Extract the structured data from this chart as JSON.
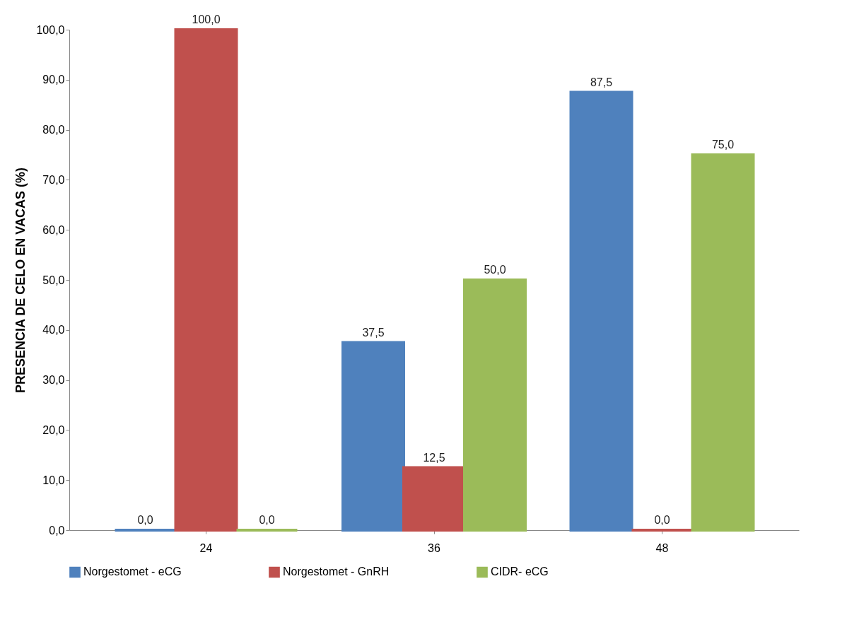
{
  "chart_data": {
    "type": "bar",
    "ylabel": "PRESENCIA  DE CELO EN VACAS (%)",
    "categories": [
      "24",
      "36",
      "48"
    ],
    "series": [
      {
        "name": "Norgestomet - eCG",
        "color": "#4f81bd",
        "values": [
          0,
          37.5,
          87.5
        ],
        "value_labels": [
          "0,0",
          "37,5",
          "87,5"
        ]
      },
      {
        "name": "Norgestomet - GnRH",
        "color": "#c0504d",
        "values": [
          100,
          12.5,
          0
        ],
        "value_labels": [
          "100,0",
          "12,5",
          "0,0"
        ]
      },
      {
        "name": "CIDR- eCG",
        "color": "#9bbb59",
        "values": [
          0,
          50,
          75
        ],
        "value_labels": [
          "0,0",
          "50,0",
          "75,0"
        ]
      }
    ],
    "ylim": [
      0,
      100
    ],
    "yticks": [
      {
        "value": 0,
        "label": "0,0"
      },
      {
        "value": 10,
        "label": "10,0"
      },
      {
        "value": 20,
        "label": "20,0"
      },
      {
        "value": 30,
        "label": "30,0"
      },
      {
        "value": 40,
        "label": "40,0"
      },
      {
        "value": 50,
        "label": "50,0"
      },
      {
        "value": 60,
        "label": "60,0"
      },
      {
        "value": 70,
        "label": "70,0"
      },
      {
        "value": 80,
        "label": "80,0"
      },
      {
        "value": 90,
        "label": "90,0"
      },
      {
        "value": 100,
        "label": "100,0"
      }
    ],
    "grid": false,
    "legend": "bottom"
  }
}
